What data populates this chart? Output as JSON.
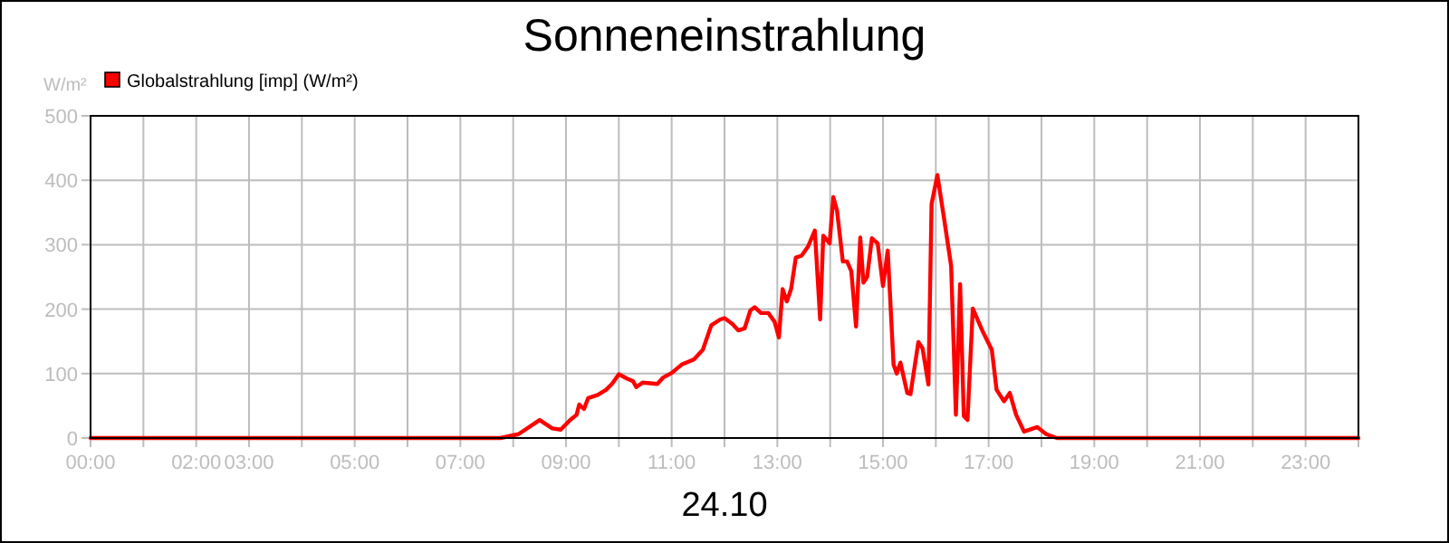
{
  "chart_data": {
    "type": "line",
    "title": "Sonneneinstrahlung",
    "xlabel": "24.10",
    "ylabel": "W/m²",
    "xlim": [
      0,
      24
    ],
    "xticks": [
      {
        "value": 0,
        "label": "00:00"
      },
      {
        "value": 1,
        "label": null
      },
      {
        "value": 2,
        "label": "02:00"
      },
      {
        "value": 3,
        "label": "03:00"
      },
      {
        "value": 4,
        "label": null
      },
      {
        "value": 5,
        "label": "05:00"
      },
      {
        "value": 6,
        "label": null
      },
      {
        "value": 7,
        "label": "07:00"
      },
      {
        "value": 8,
        "label": null
      },
      {
        "value": 9,
        "label": "09:00"
      },
      {
        "value": 10,
        "label": null
      },
      {
        "value": 11,
        "label": "11:00"
      },
      {
        "value": 12,
        "label": null
      },
      {
        "value": 13,
        "label": "13:00"
      },
      {
        "value": 14,
        "label": null
      },
      {
        "value": 15,
        "label": "15:00"
      },
      {
        "value": 16,
        "label": null
      },
      {
        "value": 17,
        "label": "17:00"
      },
      {
        "value": 18,
        "label": null
      },
      {
        "value": 19,
        "label": "19:00"
      },
      {
        "value": 20,
        "label": null
      },
      {
        "value": 21,
        "label": "21:00"
      },
      {
        "value": 22,
        "label": null
      },
      {
        "value": 23,
        "label": "23:00"
      },
      {
        "value": 24,
        "label": null
      }
    ],
    "ylim": [
      0,
      500
    ],
    "yticks": [
      0,
      100,
      200,
      300,
      400,
      500
    ],
    "grid": true,
    "legend": "top left",
    "marker": "none",
    "line_style": "solid",
    "series": [
      {
        "name": "Globalstrahlung [imp] (W/m²)",
        "color": "#ff0000",
        "x": [
          0,
          7.76,
          8.1,
          8.5,
          8.74,
          8.9,
          9.08,
          9.2,
          9.25,
          9.34,
          9.42,
          9.6,
          9.76,
          9.87,
          10.0,
          10.16,
          10.27,
          10.33,
          10.45,
          10.73,
          10.84,
          11.0,
          11.19,
          11.42,
          11.59,
          11.75,
          11.92,
          12.0,
          12.15,
          12.26,
          12.38,
          12.49,
          12.57,
          12.69,
          12.83,
          12.95,
          13.03,
          13.1,
          13.18,
          13.26,
          13.35,
          13.46,
          13.58,
          13.71,
          13.81,
          13.87,
          13.99,
          14.06,
          14.13,
          14.24,
          14.32,
          14.4,
          14.49,
          14.57,
          14.63,
          14.7,
          14.79,
          14.9,
          15.0,
          15.09,
          15.2,
          15.26,
          15.33,
          15.46,
          15.52,
          15.67,
          15.75,
          15.86,
          15.92,
          16.03,
          16.15,
          16.29,
          16.38,
          16.46,
          16.53,
          16.6,
          16.7,
          16.89,
          17.06,
          17.15,
          17.29,
          17.4,
          17.52,
          17.67,
          17.92,
          18.09,
          18.29,
          24
        ],
        "values": [
          0,
          0,
          6,
          28,
          15,
          13,
          28,
          36,
          52,
          45,
          62,
          67,
          75,
          84,
          99,
          92,
          88,
          79,
          86,
          84,
          94,
          101,
          114,
          122,
          137,
          175,
          184,
          186,
          177,
          167,
          170,
          198,
          203,
          194,
          194,
          180,
          156,
          231,
          212,
          231,
          280,
          283,
          297,
          322,
          184,
          314,
          302,
          374,
          353,
          274,
          274,
          259,
          173,
          311,
          241,
          250,
          310,
          302,
          236,
          291,
          114,
          100,
          117,
          70,
          68,
          149,
          139,
          83,
          363,
          408,
          344,
          267,
          36,
          239,
          34,
          28,
          201,
          165,
          137,
          75,
          57,
          70,
          36,
          10,
          17,
          6,
          0,
          0
        ]
      }
    ]
  }
}
